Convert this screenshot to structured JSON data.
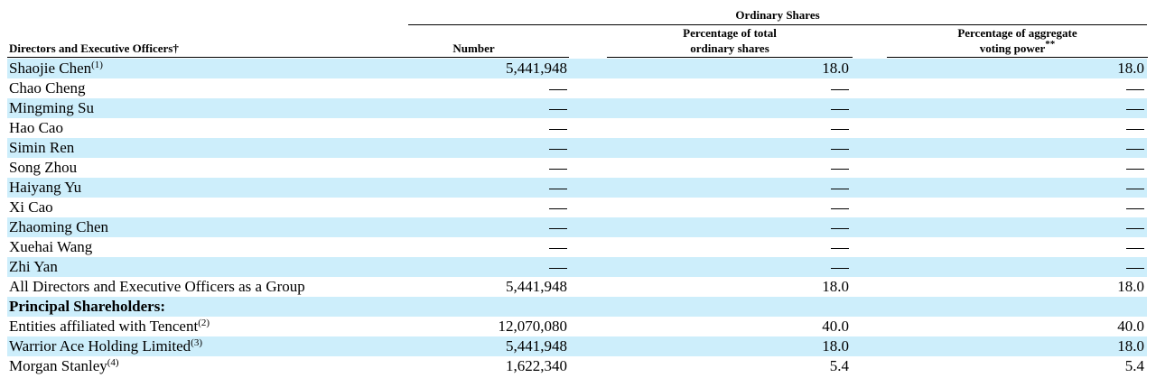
{
  "header": {
    "group_title": "Ordinary Shares",
    "col0": "Directors and Executive Officers†",
    "col1": "Number",
    "col2_line1": "Percentage of total",
    "col2_line2": "ordinary shares",
    "col3_line1": "Percentage of aggregate",
    "col3_line2": "voting power",
    "col3_mark": "**"
  },
  "rows": [
    {
      "name": "Shaojie Chen",
      "note": "(1)",
      "number": "5,441,948",
      "pct_total": "18.0",
      "pct_voting": "18.0"
    },
    {
      "name": "Chao Cheng",
      "number": "—",
      "pct_total": "—",
      "pct_voting": "—"
    },
    {
      "name": "Mingming Su",
      "number": "—",
      "pct_total": "—",
      "pct_voting": "—"
    },
    {
      "name": "Hao Cao",
      "number": "—",
      "pct_total": "—",
      "pct_voting": "—"
    },
    {
      "name": "Simin Ren",
      "number": "—",
      "pct_total": "—",
      "pct_voting": "—"
    },
    {
      "name": "Song Zhou",
      "number": "—",
      "pct_total": "—",
      "pct_voting": "—"
    },
    {
      "name": "Haiyang Yu",
      "number": "—",
      "pct_total": "—",
      "pct_voting": "—"
    },
    {
      "name": "Xi Cao",
      "number": "—",
      "pct_total": "—",
      "pct_voting": "—"
    },
    {
      "name": "Zhaoming Chen",
      "number": "—",
      "pct_total": "—",
      "pct_voting": "—"
    },
    {
      "name": "Xuehai Wang",
      "number": "—",
      "pct_total": "—",
      "pct_voting": "—"
    },
    {
      "name": "Zhi Yan",
      "number": "—",
      "pct_total": "—",
      "pct_voting": "—"
    },
    {
      "name": "All Directors and Executive Officers as a Group",
      "number": "5,441,948",
      "pct_total": "18.0",
      "pct_voting": "18.0"
    },
    {
      "name": "Principal Shareholders:",
      "section": true
    },
    {
      "name": "Entities affiliated with Tencent",
      "note": "(2)",
      "number": "12,070,080",
      "pct_total": "40.0",
      "pct_voting": "40.0"
    },
    {
      "name": "Warrior Ace Holding Limited",
      "note": "(3)",
      "number": "5,441,948",
      "pct_total": "18.0",
      "pct_voting": "18.0"
    },
    {
      "name": "Morgan Stanley",
      "note": "(4)",
      "number": "1,622,340",
      "pct_total": "5.4",
      "pct_voting": "5.4"
    }
  ]
}
